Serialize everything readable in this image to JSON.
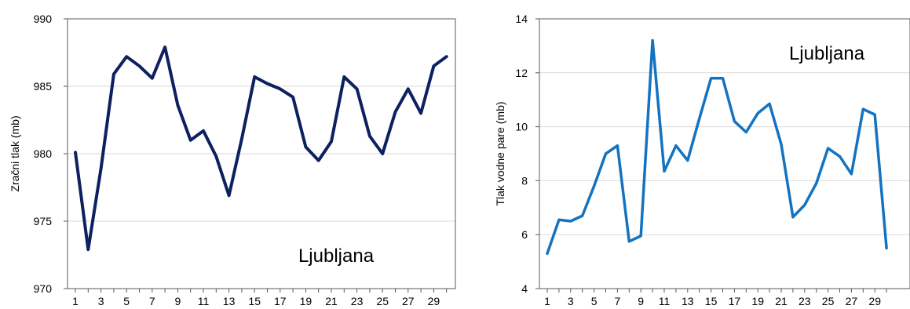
{
  "chart_data": [
    {
      "type": "line",
      "ylabel": "Zračni tlak (mb)",
      "xlabel": "",
      "annotation": "Ljubljana",
      "x": [
        1,
        2,
        3,
        4,
        5,
        6,
        7,
        8,
        9,
        10,
        11,
        12,
        13,
        14,
        15,
        16,
        17,
        18,
        19,
        20,
        21,
        22,
        23,
        24,
        25,
        26,
        27,
        28,
        29,
        30
      ],
      "xticks": [
        "1",
        "3",
        "5",
        "7",
        "9",
        "11",
        "13",
        "15",
        "17",
        "19",
        "21",
        "23",
        "25",
        "27",
        "29"
      ],
      "ylim": [
        970,
        990
      ],
      "yticks": [
        970,
        975,
        980,
        985,
        990
      ],
      "grid": true,
      "color": "#0d2060",
      "series": [
        {
          "values": [
            980.1,
            972.9,
            978.9,
            985.9,
            987.2,
            986.5,
            985.6,
            987.9,
            983.6,
            981.0,
            981.7,
            979.8,
            976.9,
            981.1,
            985.7,
            985.2,
            984.8,
            984.2,
            980.5,
            979.5,
            980.9,
            985.7,
            984.8,
            981.3,
            980.0,
            983.1,
            984.8,
            983.0,
            986.5,
            987.2
          ]
        }
      ]
    },
    {
      "type": "line",
      "ylabel": "Tlak vodne pare (mb)",
      "xlabel": "",
      "annotation": "Ljubljana",
      "x": [
        1,
        2,
        3,
        4,
        5,
        6,
        7,
        8,
        9,
        10,
        11,
        12,
        13,
        14,
        15,
        16,
        17,
        18,
        19,
        20,
        21,
        22,
        23,
        24,
        25,
        26,
        27,
        28,
        29,
        30
      ],
      "xticks": [
        "1",
        "3",
        "5",
        "7",
        "9",
        "11",
        "13",
        "15",
        "17",
        "19",
        "21",
        "23",
        "25",
        "27",
        "29"
      ],
      "ylim": [
        4,
        14
      ],
      "yticks": [
        4,
        6,
        8,
        10,
        12,
        14
      ],
      "grid": true,
      "color": "#1473c0",
      "series": [
        {
          "values": [
            5.3,
            6.55,
            6.5,
            6.7,
            7.8,
            9.0,
            9.3,
            5.75,
            5.95,
            13.2,
            8.35,
            9.3,
            8.75,
            10.3,
            11.8,
            11.8,
            10.2,
            9.8,
            10.5,
            10.85,
            9.35,
            6.65,
            7.1,
            7.9,
            9.2,
            8.9,
            8.25,
            10.65,
            10.45,
            5.5
          ]
        }
      ]
    }
  ]
}
